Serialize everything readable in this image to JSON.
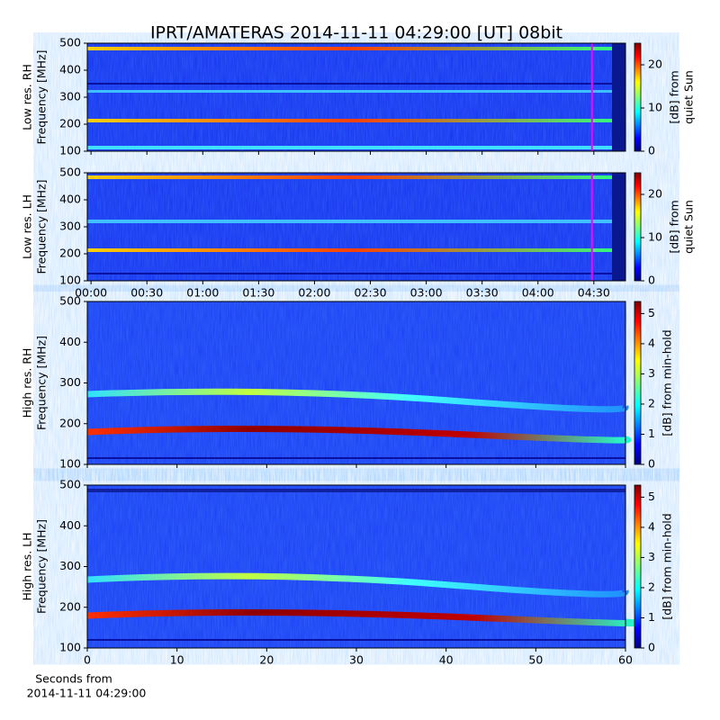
{
  "chart_data": [
    {
      "type": "spectrogram",
      "title": "IPRT/AMATERAS 2014-11-11 04:29:00 [UT]   08bit",
      "ylabel": [
        "Low res. RH",
        "Frequency [MHz]"
      ],
      "xlim": [
        -2,
        287
      ],
      "xticks": [
        0,
        30,
        60,
        90,
        120,
        150,
        180,
        210,
        240,
        270
      ],
      "ylim": [
        100,
        500
      ],
      "yticks": [
        100,
        200,
        300,
        400,
        500
      ],
      "marker_x": 269,
      "marker_color": "#ff00ff",
      "clabel": [
        "[dB] from",
        "quiet Sun"
      ],
      "clim": [
        0,
        25
      ],
      "cticks": [
        0,
        10,
        20
      ]
    },
    {
      "type": "spectrogram",
      "ylabel": [
        "Low res. LH",
        "Frequency [MHz]"
      ],
      "xlim": [
        -2,
        287
      ],
      "xticks": [
        {
          "value": 0,
          "label": "00:00"
        },
        {
          "value": 30,
          "label": "00:30"
        },
        {
          "value": 60,
          "label": "01:00"
        },
        {
          "value": 90,
          "label": "01:30"
        },
        {
          "value": 120,
          "label": "02:00"
        },
        {
          "value": 150,
          "label": "02:30"
        },
        {
          "value": 180,
          "label": "03:00"
        },
        {
          "value": 210,
          "label": "03:30"
        },
        {
          "value": 240,
          "label": "04:00"
        },
        {
          "value": 270,
          "label": "04:30"
        }
      ],
      "ylim": [
        100,
        500
      ],
      "yticks": [
        100,
        200,
        300,
        400,
        500
      ],
      "marker_x": 269,
      "marker_color": "#ff00ff",
      "clabel": [
        "[dB] from",
        "quiet Sun"
      ],
      "clim": [
        0,
        25
      ],
      "cticks": [
        0,
        10,
        20
      ]
    },
    {
      "type": "spectrogram",
      "ylabel": [
        "High res. RH",
        "Frequency [MHz]"
      ],
      "xlim": [
        0,
        60
      ],
      "xticks": [
        0,
        10,
        20,
        30,
        40,
        50,
        60
      ],
      "ylim": [
        100,
        500
      ],
      "yticks": [
        100,
        200,
        300,
        400,
        500
      ],
      "clabel": [
        "[dB] from min-hold"
      ],
      "clim": [
        0,
        5.4
      ],
      "cticks": [
        0,
        1,
        2,
        3,
        4,
        5
      ]
    },
    {
      "type": "spectrogram",
      "ylabel": [
        "High res. LH",
        "Frequency [MHz]"
      ],
      "xlabel": [
        "Seconds from",
        "2014-11-11 04:29:00"
      ],
      "xlim": [
        0,
        60
      ],
      "xticks": [
        0,
        10,
        20,
        30,
        40,
        50,
        60
      ],
      "ylim": [
        100,
        500
      ],
      "yticks": [
        100,
        200,
        300,
        400,
        500
      ],
      "clabel": [
        "[dB] from min-hold"
      ],
      "clim": [
        0,
        5.4
      ],
      "cticks": [
        0,
        1,
        2,
        3,
        4,
        5
      ]
    }
  ]
}
